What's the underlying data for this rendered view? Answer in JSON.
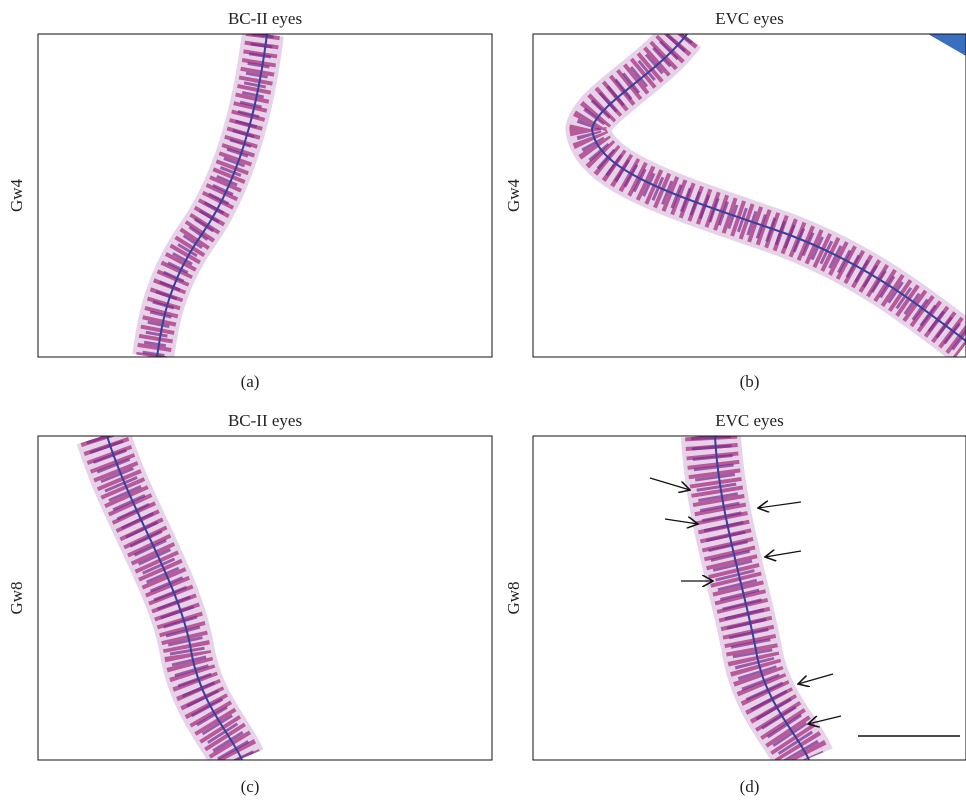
{
  "panels": [
    {
      "title": "BC-II eyes",
      "row_label": "Gw4",
      "caption": "(a)"
    },
    {
      "title": "EVC eyes",
      "row_label": "Gw4",
      "caption": "(b)"
    },
    {
      "title": "BC-II eyes",
      "row_label": "Gw8",
      "caption": "(c)"
    },
    {
      "title": "EVC eyes",
      "row_label": "Gw8",
      "caption": "(d)"
    }
  ]
}
